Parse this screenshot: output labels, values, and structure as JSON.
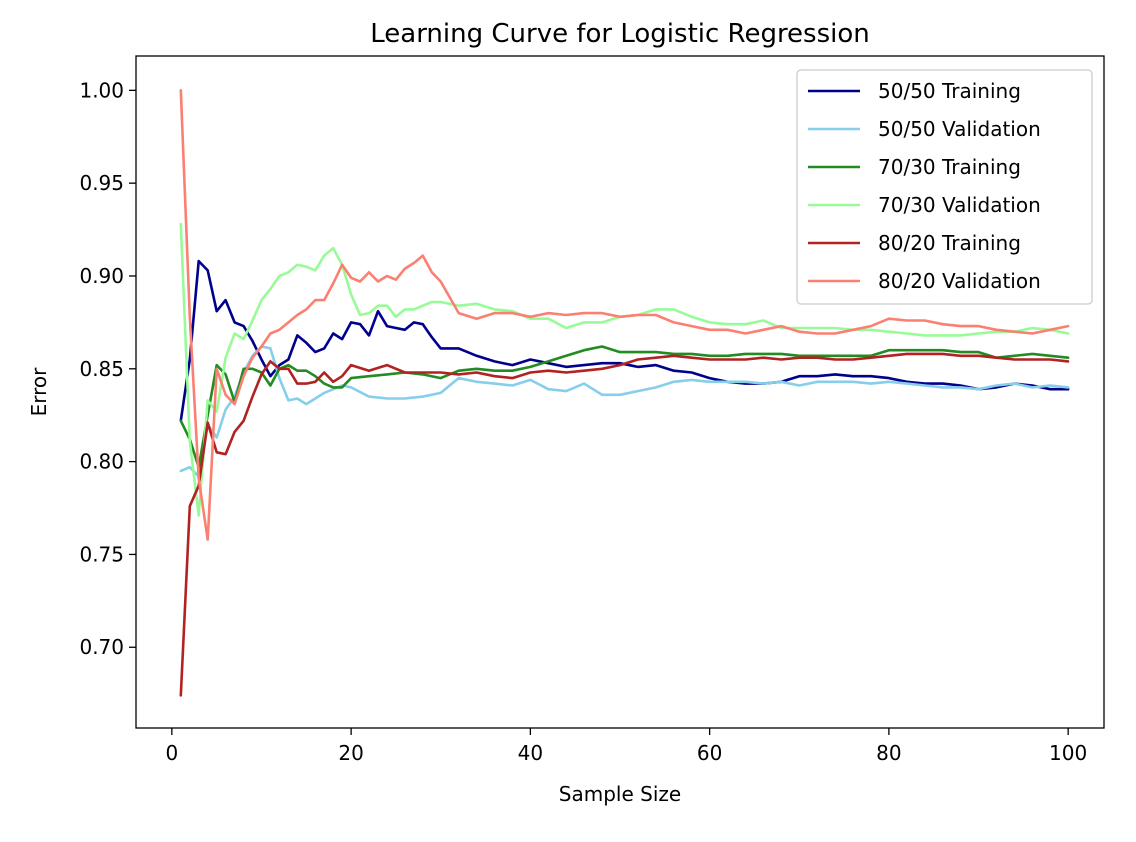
{
  "chart_data": {
    "type": "line",
    "title": "Learning Curve for Logistic Regression",
    "xlabel": "Sample Size",
    "ylabel": "Error",
    "xlim": [
      -4,
      104
    ],
    "ylim": [
      0.6565,
      1.0185
    ],
    "xticks": [
      0,
      20,
      40,
      60,
      80,
      100
    ],
    "xtick_labels": [
      "0",
      "20",
      "40",
      "60",
      "80",
      "100"
    ],
    "yticks": [
      0.7,
      0.75,
      0.8,
      0.85,
      0.9,
      0.95,
      1.0
    ],
    "ytick_labels": [
      "0.70",
      "0.75",
      "0.80",
      "0.85",
      "0.90",
      "0.95",
      "1.00"
    ],
    "grid": false,
    "legend_position": "top-right",
    "series": [
      {
        "name": "50/50 Training",
        "color": "#00008b",
        "x": [
          1,
          2,
          3,
          4,
          5,
          6,
          7,
          8,
          9,
          10,
          11,
          12,
          13,
          14,
          15,
          16,
          17,
          18,
          19,
          20,
          21,
          22,
          23,
          24,
          25,
          26,
          27,
          28,
          29,
          30,
          32,
          34,
          36,
          38,
          40,
          42,
          44,
          46,
          48,
          50,
          52,
          54,
          56,
          58,
          60,
          62,
          64,
          66,
          68,
          70,
          72,
          74,
          76,
          78,
          80,
          82,
          84,
          86,
          88,
          90,
          92,
          94,
          96,
          98,
          100
        ],
        "values": [
          0.822,
          0.855,
          0.908,
          0.903,
          0.881,
          0.887,
          0.875,
          0.873,
          0.865,
          0.855,
          0.846,
          0.852,
          0.855,
          0.868,
          0.864,
          0.859,
          0.861,
          0.869,
          0.866,
          0.875,
          0.874,
          0.868,
          0.881,
          0.873,
          0.872,
          0.871,
          0.875,
          0.874,
          0.867,
          0.861,
          0.861,
          0.857,
          0.854,
          0.852,
          0.855,
          0.853,
          0.851,
          0.852,
          0.853,
          0.853,
          0.851,
          0.852,
          0.849,
          0.848,
          0.845,
          0.843,
          0.842,
          0.842,
          0.843,
          0.846,
          0.846,
          0.847,
          0.846,
          0.846,
          0.845,
          0.843,
          0.842,
          0.842,
          0.841,
          0.839,
          0.84,
          0.842,
          0.841,
          0.839,
          0.839
        ]
      },
      {
        "name": "50/50 Validation",
        "color": "#87ceeb",
        "x": [
          1,
          2,
          3,
          4,
          5,
          6,
          7,
          8,
          9,
          10,
          11,
          12,
          13,
          14,
          15,
          16,
          17,
          18,
          19,
          20,
          22,
          24,
          26,
          28,
          30,
          32,
          34,
          36,
          38,
          40,
          42,
          44,
          46,
          48,
          50,
          52,
          54,
          56,
          58,
          60,
          62,
          64,
          66,
          68,
          70,
          72,
          74,
          76,
          78,
          80,
          82,
          84,
          86,
          88,
          90,
          92,
          94,
          96,
          98,
          100
        ],
        "values": [
          0.795,
          0.797,
          0.792,
          0.82,
          0.813,
          0.828,
          0.835,
          0.848,
          0.857,
          0.862,
          0.861,
          0.845,
          0.833,
          0.834,
          0.831,
          0.834,
          0.837,
          0.839,
          0.841,
          0.84,
          0.835,
          0.834,
          0.834,
          0.835,
          0.837,
          0.845,
          0.843,
          0.842,
          0.841,
          0.844,
          0.839,
          0.838,
          0.842,
          0.836,
          0.836,
          0.838,
          0.84,
          0.843,
          0.844,
          0.843,
          0.843,
          0.843,
          0.842,
          0.843,
          0.841,
          0.843,
          0.843,
          0.843,
          0.842,
          0.843,
          0.842,
          0.841,
          0.84,
          0.84,
          0.839,
          0.841,
          0.842,
          0.84,
          0.841,
          0.84
        ]
      },
      {
        "name": "70/30 Training",
        "color": "#228b22",
        "x": [
          1,
          2,
          3,
          4,
          5,
          6,
          7,
          8,
          9,
          10,
          11,
          12,
          13,
          14,
          15,
          16,
          17,
          18,
          19,
          20,
          22,
          24,
          26,
          28,
          30,
          32,
          34,
          36,
          38,
          40,
          42,
          44,
          46,
          48,
          50,
          52,
          54,
          56,
          58,
          60,
          62,
          64,
          66,
          68,
          70,
          72,
          74,
          76,
          78,
          80,
          82,
          84,
          86,
          88,
          90,
          92,
          94,
          96,
          98,
          100
        ],
        "values": [
          0.822,
          0.812,
          0.797,
          0.825,
          0.852,
          0.847,
          0.832,
          0.85,
          0.85,
          0.848,
          0.841,
          0.85,
          0.852,
          0.849,
          0.849,
          0.846,
          0.842,
          0.84,
          0.84,
          0.845,
          0.846,
          0.847,
          0.848,
          0.847,
          0.845,
          0.849,
          0.85,
          0.849,
          0.849,
          0.851,
          0.854,
          0.857,
          0.86,
          0.862,
          0.859,
          0.859,
          0.859,
          0.858,
          0.858,
          0.857,
          0.857,
          0.858,
          0.858,
          0.858,
          0.857,
          0.857,
          0.857,
          0.857,
          0.857,
          0.86,
          0.86,
          0.86,
          0.86,
          0.859,
          0.859,
          0.856,
          0.857,
          0.858,
          0.857,
          0.856
        ]
      },
      {
        "name": "70/30 Validation",
        "color": "#98fb98",
        "x": [
          1,
          2,
          3,
          4,
          5,
          6,
          7,
          8,
          9,
          10,
          11,
          12,
          13,
          14,
          15,
          16,
          17,
          18,
          19,
          20,
          21,
          22,
          23,
          24,
          25,
          26,
          27,
          28,
          29,
          30,
          32,
          34,
          36,
          38,
          40,
          42,
          44,
          46,
          48,
          50,
          52,
          54,
          56,
          58,
          60,
          62,
          64,
          66,
          68,
          70,
          72,
          74,
          76,
          78,
          80,
          82,
          84,
          86,
          88,
          90,
          92,
          94,
          96,
          98,
          100
        ],
        "values": [
          0.928,
          0.811,
          0.771,
          0.833,
          0.827,
          0.856,
          0.869,
          0.866,
          0.876,
          0.887,
          0.893,
          0.9,
          0.902,
          0.906,
          0.905,
          0.903,
          0.911,
          0.915,
          0.906,
          0.89,
          0.879,
          0.88,
          0.884,
          0.884,
          0.878,
          0.882,
          0.882,
          0.884,
          0.886,
          0.886,
          0.884,
          0.885,
          0.882,
          0.881,
          0.877,
          0.877,
          0.872,
          0.875,
          0.875,
          0.878,
          0.879,
          0.882,
          0.882,
          0.878,
          0.875,
          0.874,
          0.874,
          0.876,
          0.872,
          0.872,
          0.872,
          0.872,
          0.871,
          0.871,
          0.87,
          0.869,
          0.868,
          0.868,
          0.868,
          0.869,
          0.87,
          0.87,
          0.872,
          0.871,
          0.869
        ]
      },
      {
        "name": "80/20 Training",
        "color": "#b22222",
        "x": [
          1,
          2,
          3,
          4,
          5,
          6,
          7,
          8,
          9,
          10,
          11,
          12,
          13,
          14,
          15,
          16,
          17,
          18,
          19,
          20,
          22,
          24,
          26,
          28,
          30,
          32,
          34,
          36,
          38,
          40,
          42,
          44,
          46,
          48,
          50,
          52,
          54,
          56,
          58,
          60,
          62,
          64,
          66,
          68,
          70,
          72,
          74,
          76,
          78,
          80,
          82,
          84,
          86,
          88,
          90,
          92,
          94,
          96,
          98,
          100
        ],
        "values": [
          0.674,
          0.776,
          0.787,
          0.821,
          0.805,
          0.804,
          0.816,
          0.822,
          0.835,
          0.847,
          0.854,
          0.85,
          0.85,
          0.842,
          0.842,
          0.843,
          0.848,
          0.843,
          0.846,
          0.852,
          0.849,
          0.852,
          0.848,
          0.848,
          0.848,
          0.847,
          0.848,
          0.846,
          0.845,
          0.848,
          0.849,
          0.848,
          0.849,
          0.85,
          0.852,
          0.855,
          0.856,
          0.857,
          0.856,
          0.855,
          0.855,
          0.855,
          0.856,
          0.855,
          0.856,
          0.856,
          0.855,
          0.855,
          0.856,
          0.857,
          0.858,
          0.858,
          0.858,
          0.857,
          0.857,
          0.856,
          0.855,
          0.855,
          0.855,
          0.854
        ]
      },
      {
        "name": "80/20 Validation",
        "color": "#fa8072",
        "x": [
          1,
          2,
          3,
          4,
          5,
          6,
          7,
          8,
          9,
          10,
          11,
          12,
          13,
          14,
          15,
          16,
          17,
          18,
          19,
          20,
          21,
          22,
          23,
          24,
          25,
          26,
          27,
          28,
          29,
          30,
          32,
          34,
          36,
          38,
          40,
          42,
          44,
          46,
          48,
          50,
          52,
          54,
          56,
          58,
          60,
          62,
          64,
          66,
          68,
          70,
          72,
          74,
          76,
          78,
          80,
          82,
          84,
          86,
          88,
          90,
          92,
          94,
          96,
          98,
          100
        ],
        "values": [
          1.0,
          0.878,
          0.791,
          0.758,
          0.85,
          0.836,
          0.831,
          0.846,
          0.856,
          0.862,
          0.869,
          0.871,
          0.875,
          0.879,
          0.882,
          0.887,
          0.887,
          0.896,
          0.906,
          0.899,
          0.897,
          0.902,
          0.897,
          0.9,
          0.898,
          0.904,
          0.907,
          0.911,
          0.902,
          0.897,
          0.88,
          0.877,
          0.88,
          0.88,
          0.878,
          0.88,
          0.879,
          0.88,
          0.88,
          0.878,
          0.879,
          0.879,
          0.875,
          0.873,
          0.871,
          0.871,
          0.869,
          0.871,
          0.873,
          0.87,
          0.869,
          0.869,
          0.871,
          0.873,
          0.877,
          0.876,
          0.876,
          0.874,
          0.873,
          0.873,
          0.871,
          0.87,
          0.869,
          0.871,
          0.873
        ]
      }
    ]
  }
}
